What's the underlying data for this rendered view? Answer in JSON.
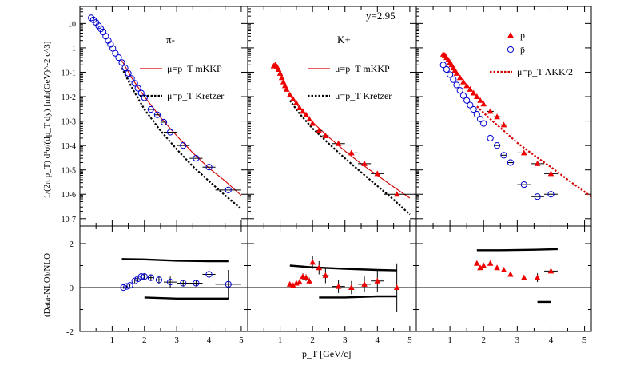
{
  "figure": {
    "x_axis_title": "p_T [GeV/c]",
    "top_ylabel": "1/(2π p_T) d²σ/(dp_T dy) [mb(GeV)^-2 c^3]",
    "bottom_ylabel": "(Data-NLO)/NLO",
    "annotation": "y=2.95"
  },
  "chart_data": [
    {
      "type": "scatter",
      "panel": "top-left",
      "particle_label": "π-",
      "x_range": [
        0,
        5.2
      ],
      "y_range": [
        5e-08,
        50
      ],
      "y_scale": "log",
      "x_ticks": [
        "1",
        "2",
        "3",
        "4",
        "5"
      ],
      "y_ticks": [
        "10",
        "1",
        "10-1",
        "10-2",
        "10-3",
        "10-4",
        "10-5",
        "10-6",
        "10-7"
      ],
      "series": [
        {
          "name": "",
          "style": "open-circle",
          "color": "#0000cc",
          "x": [
            0.35,
            0.42,
            0.5,
            0.58,
            0.65,
            0.72,
            0.8,
            0.88,
            0.95,
            1.02,
            1.1,
            1.2,
            1.3,
            1.4,
            1.5,
            1.6,
            1.7,
            1.8,
            1.9,
            2.0,
            2.2,
            2.4,
            2.6,
            2.8,
            3.2,
            3.6,
            4.0,
            4.6
          ],
          "y": [
            17,
            14,
            11,
            8,
            6,
            4.5,
            3,
            2,
            1.4,
            0.95,
            0.6,
            0.4,
            0.25,
            0.15,
            0.09,
            0.055,
            0.035,
            0.022,
            0.014,
            0.009,
            0.003,
            0.0018,
            0.0009,
            0.00035,
            0.0001,
            3e-05,
            1.3e-05,
            1.5e-06
          ],
          "xerr": [
            0,
            0,
            0,
            0,
            0,
            0,
            0,
            0,
            0,
            0,
            0,
            0,
            0,
            0,
            0,
            0,
            0,
            0,
            0,
            0,
            0.1,
            0.1,
            0.1,
            0.2,
            0.2,
            0.2,
            0.2,
            0.4
          ]
        }
      ],
      "curves": [
        {
          "name": "μ=p_T mKKP",
          "style": "solid",
          "color": "#d40000",
          "x": [
            1.3,
            1.6,
            2.0,
            2.5,
            3.0,
            3.5,
            4.0,
            4.5,
            5.0
          ],
          "y": [
            0.3,
            0.06,
            0.01,
            0.0014,
            0.00025,
            5e-05,
            1.2e-05,
            3.5e-06,
            9e-07
          ]
        },
        {
          "name": "μ=p_T Kretzer",
          "style": "dotted",
          "color": "#000000",
          "x": [
            1.3,
            1.6,
            2.0,
            2.5,
            3.0,
            3.5,
            4.0,
            4.5,
            5.0
          ],
          "y": [
            0.15,
            0.025,
            0.003,
            0.0004,
            7e-05,
            1.4e-05,
            3.5e-06,
            9e-07,
            2.5e-07
          ]
        }
      ]
    },
    {
      "type": "scatter",
      "panel": "top-middle",
      "particle_label": "K+",
      "x_range": [
        0,
        5.2
      ],
      "y_range": [
        5e-08,
        50
      ],
      "y_scale": "log",
      "x_ticks": [
        "1",
        "2",
        "3",
        "4",
        "5"
      ],
      "series": [
        {
          "name": "",
          "style": "filled-triangle",
          "color": "#ee0000",
          "x": [
            0.8,
            0.85,
            0.9,
            0.95,
            1.0,
            1.05,
            1.1,
            1.15,
            1.2,
            1.3,
            1.4,
            1.5,
            1.6,
            1.7,
            1.8,
            1.9,
            2.0,
            2.2,
            2.4,
            2.8,
            3.2,
            3.6,
            4.0,
            4.6
          ],
          "y": [
            0.18,
            0.2,
            0.17,
            0.13,
            0.09,
            0.06,
            0.04,
            0.028,
            0.02,
            0.012,
            0.008,
            0.0055,
            0.0035,
            0.0025,
            0.0018,
            0.0012,
            0.0008,
            0.0004,
            0.00025,
            0.00012,
            5e-05,
            1.8e-05,
            7e-06,
            1e-06
          ],
          "xerr": [
            0,
            0,
            0,
            0,
            0,
            0,
            0,
            0,
            0,
            0,
            0,
            0,
            0,
            0,
            0,
            0,
            0,
            0.1,
            0.1,
            0.2,
            0.2,
            0.2,
            0.2,
            0.4
          ]
        }
      ],
      "curves": [
        {
          "name": "μ=p_T mKKP",
          "style": "solid",
          "color": "#d40000",
          "x": [
            1.3,
            1.6,
            2.0,
            2.5,
            3.0,
            3.5,
            4.0,
            4.5,
            5.0
          ],
          "y": [
            0.011,
            0.0035,
            0.0009,
            0.00022,
            6e-05,
            1.8e-05,
            6e-06,
            2e-06,
            7e-07
          ]
        },
        {
          "name": "μ=p_T Kretzer",
          "style": "dotted",
          "color": "#000000",
          "x": [
            1.3,
            1.6,
            2.0,
            2.5,
            3.0,
            3.5,
            4.0,
            4.5,
            5.0
          ],
          "y": [
            0.007,
            0.002,
            0.0005,
            0.00012,
            3e-05,
            8e-06,
            2.2e-06,
            6e-07,
            1.5e-07
          ]
        }
      ]
    },
    {
      "type": "scatter",
      "panel": "top-right",
      "x_range": [
        0,
        5.2
      ],
      "y_range": [
        5e-08,
        50
      ],
      "y_scale": "log",
      "x_ticks": [
        "1",
        "2",
        "3",
        "4",
        "5"
      ],
      "series": [
        {
          "name": "p",
          "style": "filled-triangle",
          "color": "#ee0000",
          "x": [
            0.8,
            0.85,
            0.9,
            0.95,
            1.0,
            1.05,
            1.1,
            1.15,
            1.2,
            1.3,
            1.4,
            1.5,
            1.6,
            1.7,
            1.8,
            1.9,
            2.0,
            2.2,
            2.4,
            2.6,
            3.2,
            3.6,
            4.0
          ],
          "y": [
            0.55,
            0.5,
            0.4,
            0.32,
            0.25,
            0.2,
            0.15,
            0.12,
            0.09,
            0.06,
            0.04,
            0.028,
            0.02,
            0.014,
            0.01,
            0.007,
            0.005,
            0.0025,
            0.0015,
            0.0007,
            5e-05,
            1.8e-05,
            7e-06
          ],
          "xerr": [
            0,
            0,
            0,
            0,
            0,
            0,
            0,
            0,
            0,
            0,
            0,
            0,
            0,
            0,
            0,
            0,
            0,
            0.1,
            0.1,
            0.1,
            0.2,
            0.2,
            0.2
          ]
        },
        {
          "name": "p̄",
          "style": "open-circle",
          "color": "#0000cc",
          "x": [
            0.8,
            0.9,
            1.0,
            1.1,
            1.2,
            1.3,
            1.4,
            1.5,
            1.6,
            1.7,
            1.8,
            1.9,
            2.0,
            2.2,
            2.4,
            2.6,
            2.8,
            3.2,
            3.6,
            4.0
          ],
          "y": [
            0.2,
            0.13,
            0.08,
            0.05,
            0.03,
            0.018,
            0.011,
            0.007,
            0.0045,
            0.003,
            0.0019,
            0.0012,
            0.0008,
            0.0002,
            0.0001,
            4e-05,
            2e-05,
            2.5e-06,
            8e-07,
            1e-06
          ],
          "xerr": [
            0,
            0,
            0,
            0,
            0,
            0,
            0,
            0,
            0,
            0,
            0,
            0,
            0,
            0,
            0.1,
            0.1,
            0.1,
            0.2,
            0.2,
            0.2
          ]
        }
      ],
      "curves": [
        {
          "name": "μ=p_T AKK/2",
          "style": "dotted",
          "color": "#d40000",
          "x": [
            1.8,
            2.2,
            2.6,
            3.0,
            3.5,
            4.0,
            4.5,
            5.2
          ],
          "y": [
            0.004,
            0.0012,
            0.0004,
            0.00013,
            4e-05,
            1.3e-05,
            4e-06,
            8e-07
          ]
        }
      ]
    },
    {
      "type": "scatter",
      "panel": "bottom-left",
      "x_range": [
        0,
        5.2
      ],
      "y_range": [
        -2,
        2.8
      ],
      "y_ticks": [
        "-2",
        "0",
        "2"
      ],
      "x_ticks": [
        "1",
        "2",
        "3",
        "4",
        "5"
      ],
      "series": [
        {
          "name": "",
          "style": "open-circle",
          "color": "#0000cc",
          "x": [
            1.35,
            1.45,
            1.55,
            1.7,
            1.8,
            1.9,
            2.0,
            2.2,
            2.45,
            2.8,
            3.2,
            3.6,
            4.0,
            4.6
          ],
          "y": [
            0.0,
            0.05,
            0.1,
            0.3,
            0.4,
            0.5,
            0.5,
            0.45,
            0.35,
            0.25,
            0.2,
            0.2,
            0.6,
            0.15
          ],
          "yerr": [
            0.05,
            0.05,
            0.05,
            0.1,
            0.1,
            0.12,
            0.15,
            0.15,
            0.2,
            0.25,
            0.15,
            0.15,
            0.35,
            0.65
          ],
          "xerr": [
            0,
            0,
            0,
            0,
            0,
            0,
            0,
            0.1,
            0.1,
            0.2,
            0.2,
            0.2,
            0.2,
            0.4
          ]
        }
      ],
      "band_upper": {
        "x": [
          1.3,
          2.0,
          3.0,
          4.0,
          4.6
        ],
        "y": [
          1.3,
          1.28,
          1.22,
          1.2,
          1.2
        ]
      },
      "band_lower": {
        "x": [
          2.0,
          3.0,
          4.0,
          4.6
        ],
        "y": [
          -0.45,
          -0.5,
          -0.5,
          -0.5
        ]
      }
    },
    {
      "type": "scatter",
      "panel": "bottom-middle",
      "x_range": [
        0,
        5.2
      ],
      "y_range": [
        -2,
        2.8
      ],
      "x_ticks": [
        "1",
        "2",
        "3",
        "4",
        "5"
      ],
      "series": [
        {
          "name": "",
          "style": "filled-triangle",
          "color": "#ee0000",
          "x": [
            1.3,
            1.4,
            1.5,
            1.6,
            1.7,
            1.8,
            1.9,
            2.0,
            2.2,
            2.4,
            2.8,
            3.2,
            3.6,
            4.0,
            4.6
          ],
          "y": [
            0.15,
            0.1,
            0.2,
            0.25,
            0.5,
            0.45,
            0.3,
            1.15,
            0.9,
            0.55,
            0.05,
            0.0,
            0.15,
            0.3,
            0.0
          ],
          "yerr": [
            0.05,
            0.05,
            0.08,
            0.1,
            0.15,
            0.15,
            0.15,
            0.3,
            0.3,
            0.35,
            0.3,
            0.3,
            0.35,
            0.5,
            1.1
          ],
          "xerr": [
            0,
            0,
            0,
            0,
            0,
            0,
            0,
            0,
            0.1,
            0.1,
            0.2,
            0.2,
            0.2,
            0.2,
            0.4
          ]
        }
      ],
      "band_upper": {
        "x": [
          1.3,
          2.0,
          3.0,
          4.0,
          4.6
        ],
        "y": [
          1.0,
          0.92,
          0.85,
          0.8,
          0.78
        ]
      },
      "band_lower": {
        "x": [
          2.2,
          3.0,
          4.0,
          4.6
        ],
        "y": [
          -0.45,
          -0.45,
          -0.4,
          -0.4
        ]
      }
    },
    {
      "type": "scatter",
      "panel": "bottom-right",
      "x_range": [
        0,
        5.2
      ],
      "y_range": [
        -2,
        2.8
      ],
      "x_ticks": [
        "1",
        "2",
        "3",
        "4",
        "5"
      ],
      "series": [
        {
          "name": "",
          "style": "filled-triangle",
          "color": "#ee0000",
          "x": [
            1.8,
            1.9,
            2.0,
            2.2,
            2.4,
            2.6,
            2.8,
            3.2,
            3.6,
            4.0
          ],
          "y": [
            1.1,
            0.9,
            1.0,
            1.1,
            0.9,
            0.8,
            0.6,
            0.45,
            0.45,
            0.75
          ],
          "yerr": [
            0,
            0,
            0,
            0,
            0,
            0,
            0,
            0,
            0.2,
            0.35
          ],
          "xerr": [
            0,
            0,
            0,
            0,
            0,
            0,
            0,
            0,
            0,
            0.2
          ]
        }
      ],
      "band_upper": {
        "x": [
          1.8,
          2.5,
          3.5,
          4.2
        ],
        "y": [
          1.7,
          1.7,
          1.72,
          1.75
        ]
      },
      "band_lower": {
        "x": [
          3.6,
          4.0
        ],
        "y": [
          -0.65,
          -0.65
        ]
      }
    }
  ]
}
